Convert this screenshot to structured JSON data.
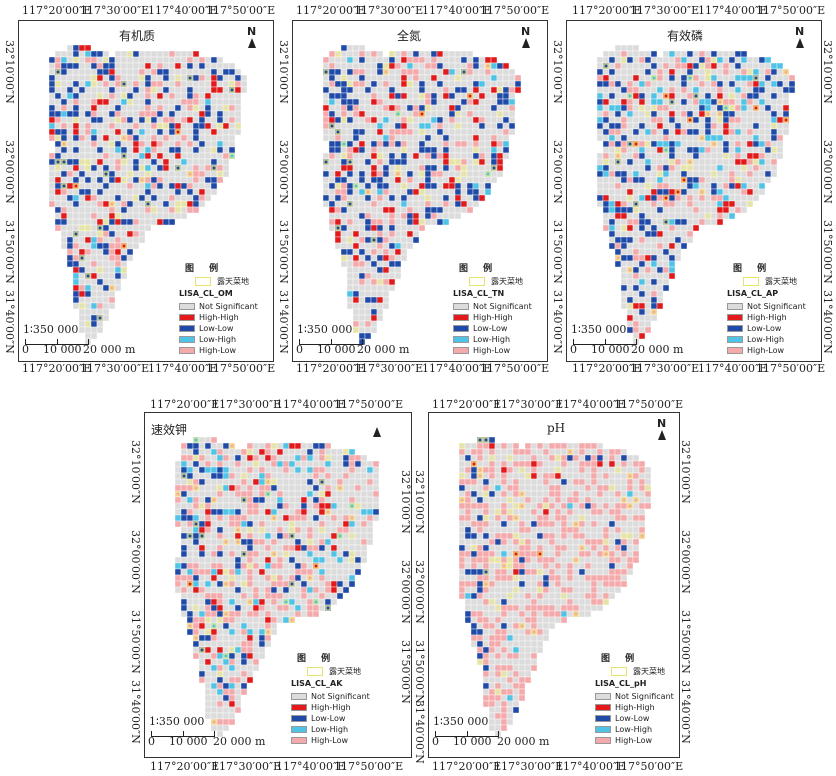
{
  "colors": {
    "not_significant": "#dcdcdc",
    "high_high": "#e31a1c",
    "low_low": "#1f4aa8",
    "low_high": "#4fc4e6",
    "high_low": "#f4a9ab",
    "vegetable_land": "#f0ec70"
  },
  "north_label": "N",
  "legend": {
    "title": "图 例",
    "vegetable_land": "露天菜地",
    "classes": [
      "Not  Significant",
      "High-High",
      "Low-Low",
      "Low-High",
      "High-Low"
    ]
  },
  "scale": {
    "ratio": "1∶350 000",
    "labels": [
      "0",
      "10 000",
      "20 000 m"
    ]
  },
  "lon_ticks": [
    "117°20′00″E",
    "117°30′00″E",
    "117°40′00″E",
    "117°50′00″E"
  ],
  "lat_ticks": [
    "32°10′00″N",
    "32°00′00″N",
    "31°50′00″N",
    "31°40′00″N"
  ],
  "panels": [
    {
      "id": "om",
      "title": "有机质",
      "field": "LISA_CL_OM"
    },
    {
      "id": "tn",
      "title": "全氮",
      "field": "LISA_CL_TN"
    },
    {
      "id": "ap",
      "title": "有效磷",
      "field": "LISA_CL_AP"
    },
    {
      "id": "ak",
      "title": "速效钾",
      "field": "LISA_CL_AK"
    },
    {
      "id": "ph",
      "title": "pH",
      "field": "LISA_CL_pH"
    }
  ]
}
